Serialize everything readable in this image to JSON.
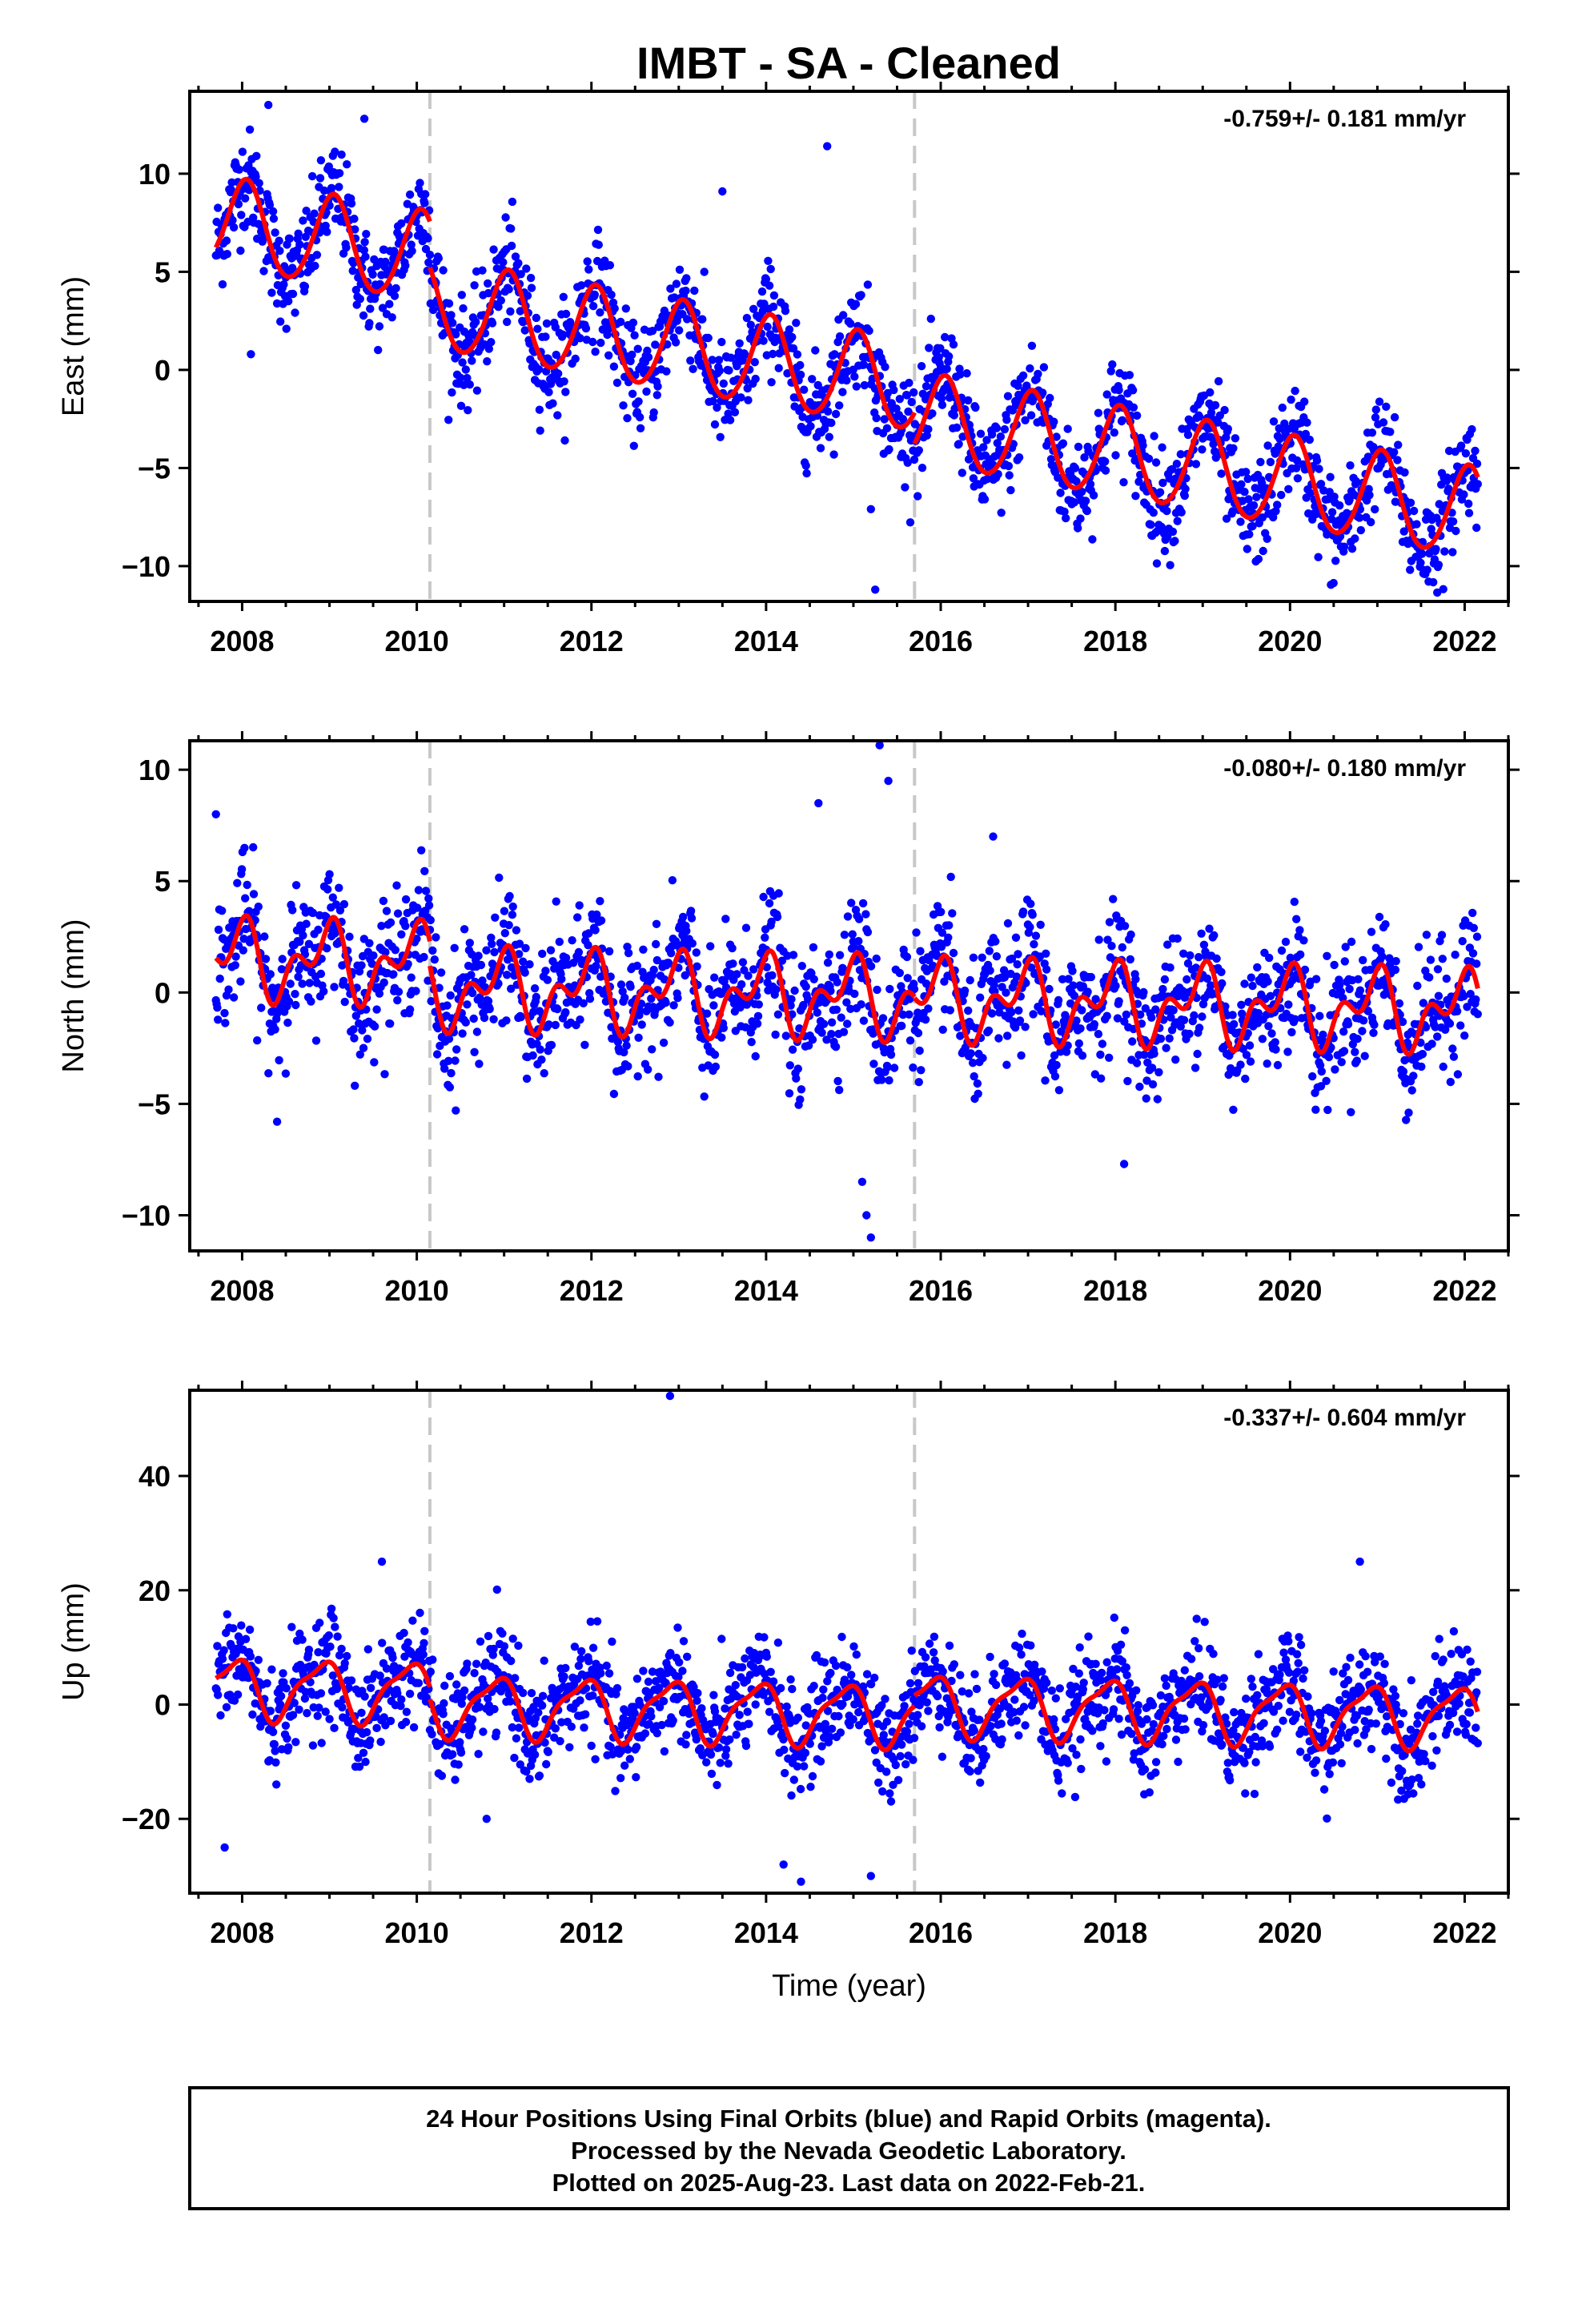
{
  "figure": {
    "title": "IMBT  - SA - Cleaned",
    "footer": {
      "lines": [
        "24 Hour Positions Using Final Orbits (blue) and Rapid Orbits (magenta).",
        "Processed by the Nevada Geodetic Laboratory.",
        "Plotted on 2025-Aug-23. Last data on 2022-Feb-21."
      ]
    },
    "colors": {
      "points": "#0000ff",
      "fit": "#ff0000",
      "breaks": "#c8c8c8",
      "frame": "#000000"
    }
  },
  "chart_data": [
    {
      "type": "scatter",
      "ylabel": "East (mm)",
      "xlabel": "",
      "rate": "-0.759+/- 0.181 mm/yr",
      "xlim": [
        2007.4,
        2022.5
      ],
      "ylim": [
        -11.8,
        14.2
      ],
      "xticks": [
        2008,
        2010,
        2012,
        2014,
        2016,
        2018,
        2020,
        2022
      ],
      "yticks": [
        -10,
        -5,
        0,
        5,
        10
      ],
      "breaks": [
        2010.15,
        2015.7
      ],
      "grid": false,
      "fit": {
        "segments": [
          {
            "x0": 2007.7,
            "x1": 2010.15,
            "start": 7.5,
            "slope": -0.759,
            "annual": 2.3,
            "phase": 1.3,
            "semiannual": 0.2
          },
          {
            "x0": 2010.15,
            "x1": 2015.7,
            "start": 3.3,
            "slope": -0.759,
            "annual": 2.3,
            "phase": 1.3,
            "semiannual": 0.2
          },
          {
            "x0": 2015.7,
            "x1": 2022.15,
            "start": -2.5,
            "slope": -0.759,
            "annual": 2.3,
            "phase": 1.3,
            "semiannual": 0.2
          }
        ]
      },
      "scatter": {
        "x_start": 2007.7,
        "x_end": 2022.15,
        "n": 1900,
        "noise": 1.3
      },
      "outliers": [
        [
          2008.3,
          13.5
        ],
        [
          2009.4,
          12.8
        ],
        [
          2014.7,
          11.4
        ],
        [
          2015.2,
          -7.1
        ],
        [
          2015.25,
          -11.2
        ],
        [
          2008.1,
          0.8
        ],
        [
          2013.5,
          9.1
        ]
      ]
    },
    {
      "type": "scatter",
      "ylabel": "North (mm)",
      "xlabel": "",
      "rate": "-0.080+/- 0.180 mm/yr",
      "xlim": [
        2007.4,
        2022.5
      ],
      "ylim": [
        -11.6,
        11.3
      ],
      "xticks": [
        2008,
        2010,
        2012,
        2014,
        2016,
        2018,
        2020,
        2022
      ],
      "yticks": [
        -10,
        -5,
        0,
        5,
        10
      ],
      "breaks": [
        2010.15,
        2015.7
      ],
      "grid": false,
      "fit": {
        "segments": [
          {
            "x0": 2007.7,
            "x1": 2010.15,
            "start": 1.5,
            "slope": -0.08,
            "annual": 1.3,
            "phase": 1.9,
            "semiannual": 1.0
          },
          {
            "x0": 2010.15,
            "x1": 2015.7,
            "start": 0.2,
            "slope": -0.08,
            "annual": 1.3,
            "phase": 1.9,
            "semiannual": 1.0
          },
          {
            "x0": 2015.7,
            "x1": 2022.15,
            "start": -0.3,
            "slope": -0.08,
            "annual": 1.3,
            "phase": 1.9,
            "semiannual": 1.0
          }
        ]
      },
      "scatter": {
        "x_start": 2007.7,
        "x_end": 2022.15,
        "n": 1900,
        "noise": 1.4
      },
      "outliers": [
        [
          2015.3,
          11.1
        ],
        [
          2015.4,
          9.5
        ],
        [
          2014.6,
          8.5
        ],
        [
          2007.7,
          8.0
        ],
        [
          2015.1,
          -8.5
        ],
        [
          2015.15,
          -10.0
        ],
        [
          2015.2,
          -11.0
        ],
        [
          2008.4,
          -5.8
        ],
        [
          2018.1,
          -7.7
        ],
        [
          2016.6,
          7.0
        ]
      ]
    },
    {
      "type": "scatter",
      "ylabel": "Up (mm)",
      "xlabel": "Time (year)",
      "rate": "-0.337+/- 0.604 mm/yr",
      "xlim": [
        2007.4,
        2022.5
      ],
      "ylim": [
        -33,
        55
      ],
      "xticks": [
        2008,
        2010,
        2012,
        2014,
        2016,
        2018,
        2020,
        2022
      ],
      "yticks": [
        -20,
        0,
        20,
        40
      ],
      "breaks": [
        2010.15,
        2015.7
      ],
      "grid": false,
      "fit": {
        "segments": [
          {
            "x0": 2007.7,
            "x1": 2010.15,
            "start": 3.0,
            "slope": -0.337,
            "annual": 5.0,
            "phase": 2.2,
            "semiannual": 1.5
          },
          {
            "x0": 2010.15,
            "x1": 2015.7,
            "start": 0.0,
            "slope": -0.337,
            "annual": 5.0,
            "phase": 2.2,
            "semiannual": 1.5
          },
          {
            "x0": 2015.7,
            "x1": 2022.15,
            "start": 0.0,
            "slope": -0.337,
            "annual": 5.0,
            "phase": 2.2,
            "semiannual": 1.5
          }
        ]
      },
      "scatter": {
        "x_start": 2007.7,
        "x_end": 2022.15,
        "n": 1900,
        "noise": 4.5
      },
      "outliers": [
        [
          2012.9,
          54
        ],
        [
          2007.8,
          -25
        ],
        [
          2014.2,
          -28
        ],
        [
          2014.4,
          -31
        ],
        [
          2015.2,
          -30
        ],
        [
          2010.8,
          -20
        ],
        [
          2020.8,
          25
        ],
        [
          2009.6,
          25
        ]
      ]
    }
  ]
}
